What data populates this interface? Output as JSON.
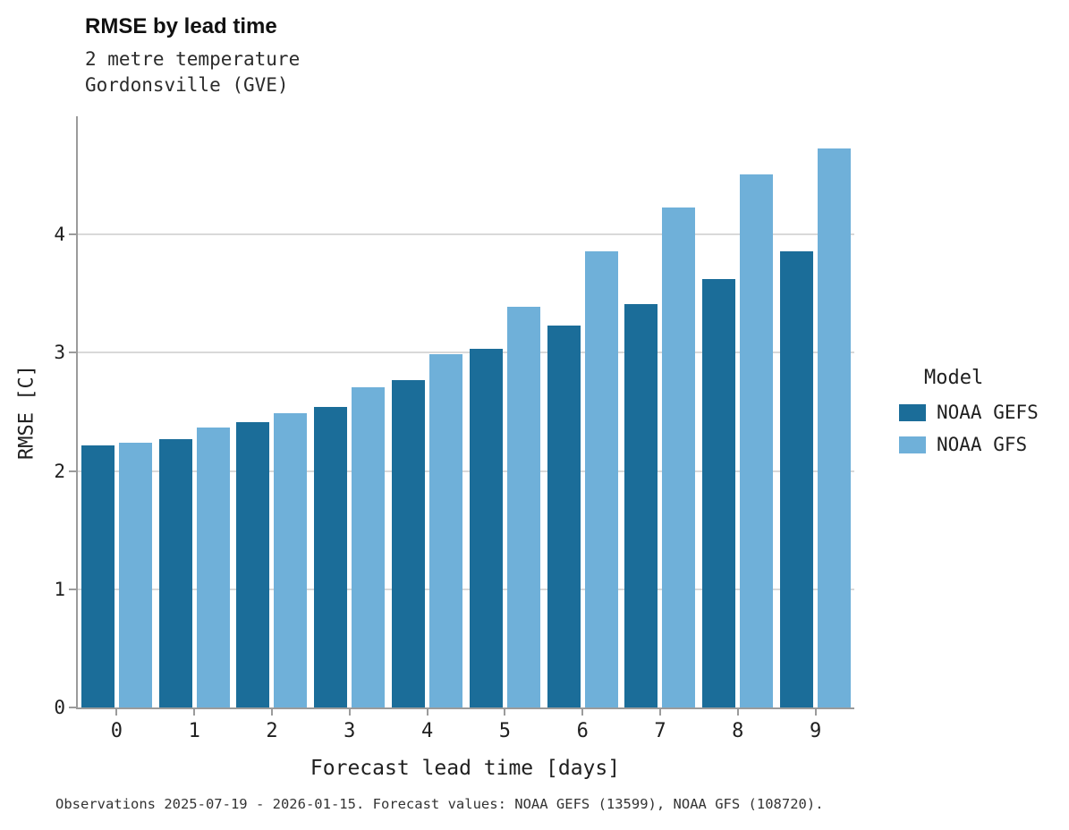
{
  "header": {
    "title": "RMSE by lead time",
    "subtitle1": "2 metre temperature",
    "subtitle2": "Gordonsville (GVE)"
  },
  "legend": {
    "title": "Model"
  },
  "caption": "Observations 2025-07-19 - 2026-01-15. Forecast values: NOAA GEFS (13599), NOAA GFS (108720).",
  "colors": {
    "gefs": "#1b6d99",
    "gfs": "#6fb0d9",
    "gridline": "#d9d9d9",
    "spine": "#9b9b9b"
  },
  "chart_data": {
    "type": "bar",
    "title": "RMSE by lead time",
    "subtitle": "2 metre temperature, Gordonsville (GVE)",
    "xlabel": "Forecast lead time [days]",
    "ylabel": "RMSE [C]",
    "categories": [
      "0",
      "1",
      "2",
      "3",
      "4",
      "5",
      "6",
      "7",
      "8",
      "9"
    ],
    "series": [
      {
        "name": "NOAA GEFS",
        "color": "#1b6d99",
        "values": [
          2.22,
          2.27,
          2.41,
          2.54,
          2.77,
          3.03,
          3.23,
          3.41,
          3.62,
          3.86
        ]
      },
      {
        "name": "NOAA GFS",
        "color": "#6fb0d9",
        "values": [
          2.24,
          2.37,
          2.49,
          2.71,
          2.99,
          3.39,
          3.86,
          4.23,
          4.51,
          4.73
        ]
      }
    ],
    "ylim": [
      0,
      5
    ],
    "yticks": [
      0,
      1,
      2,
      3,
      4
    ],
    "grid": true,
    "legend_title": "Model",
    "legend_position": "right"
  }
}
